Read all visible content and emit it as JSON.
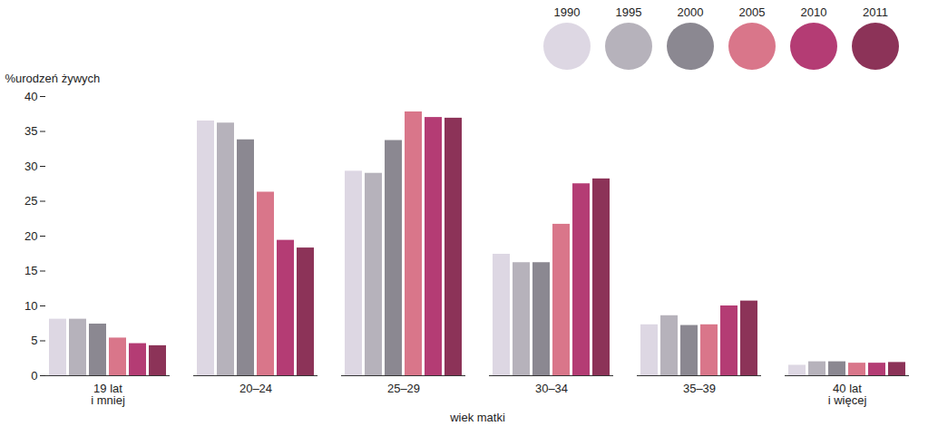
{
  "chart_data": {
    "type": "bar",
    "y_label": "%urodzeń żywych",
    "x_label": "wiek matki",
    "categories": [
      "19 lat\ni mniej",
      "20–24",
      "25–29",
      "30–34",
      "35–39",
      "40 lat\ni więcej"
    ],
    "series": [
      {
        "name": "1990",
        "color": "#ddd7e3",
        "values": [
          8.1,
          36.5,
          29.3,
          17.4,
          7.3,
          1.5
        ]
      },
      {
        "name": "1995",
        "color": "#b6b2bb",
        "values": [
          8.1,
          36.2,
          29.0,
          16.2,
          8.6,
          2.0
        ]
      },
      {
        "name": "2000",
        "color": "#8b8891",
        "values": [
          7.4,
          33.8,
          33.7,
          16.2,
          7.2,
          2.0
        ]
      },
      {
        "name": "2005",
        "color": "#d9768a",
        "values": [
          5.4,
          26.3,
          37.8,
          21.7,
          7.3,
          1.8
        ]
      },
      {
        "name": "2010",
        "color": "#b43c74",
        "values": [
          4.6,
          19.4,
          37.0,
          27.5,
          10.0,
          1.8
        ]
      },
      {
        "name": "2011",
        "color": "#8c3358",
        "values": [
          4.3,
          18.3,
          36.9,
          28.2,
          10.7,
          1.9
        ]
      }
    ],
    "ylim": [
      0,
      40
    ],
    "yticks": [
      0,
      5,
      10,
      15,
      20,
      25,
      30,
      35,
      40
    ],
    "legend": "top-right",
    "grid": false
  }
}
